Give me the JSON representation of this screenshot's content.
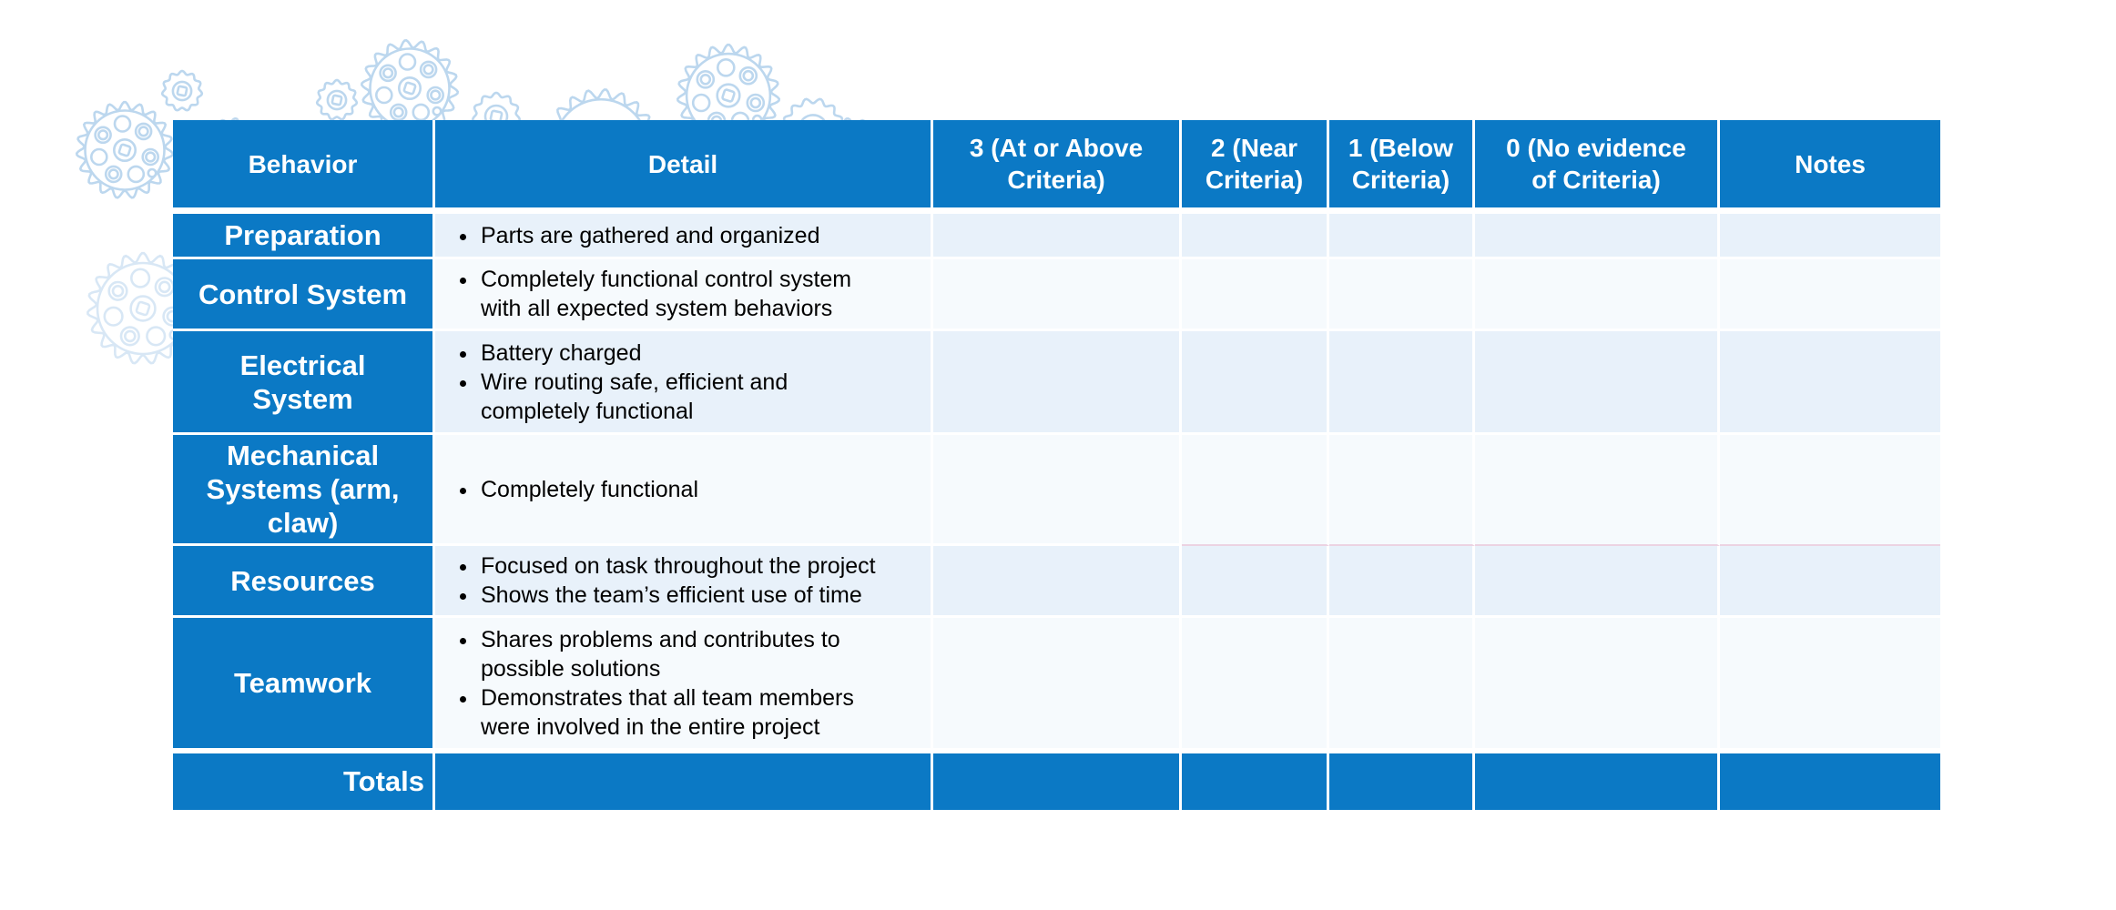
{
  "table": {
    "columns": [
      "Behavior",
      "Detail",
      "3 (At or Above Criteria)",
      "2 (Near Criteria)",
      "1 (Below Criteria)",
      "0 (No evidence of Criteria)",
      "Notes"
    ],
    "rows": [
      {
        "behavior": "Preparation",
        "details": [
          "Parts are gathered and organized"
        ]
      },
      {
        "behavior": "Control System",
        "details": [
          "Completely functional control system with all expected system behaviors"
        ]
      },
      {
        "behavior": "Electrical System",
        "details": [
          "Battery charged",
          "Wire routing safe, efficient and completely functional"
        ]
      },
      {
        "behavior": "Mechanical Systems (arm, claw)",
        "details": [
          "Completely functional"
        ]
      },
      {
        "behavior": "Resources",
        "details": [
          "Focused on task throughout the project",
          "Shows the team’s efficient use of time"
        ]
      },
      {
        "behavior": "Teamwork",
        "details": [
          "Shares problems and contributes to possible solutions",
          "Demonstrates that all team members were involved in the entire project"
        ]
      }
    ],
    "totals_label": "Totals"
  },
  "colors": {
    "header_blue": "#0b79c5",
    "row_band_blue": "#e8f1fa",
    "row_band_white": "#f6fafd",
    "divider_pink": "#ecd3e2",
    "gear_outline_blue": "#b9d5ee",
    "header_text": "#ffffff",
    "detail_text": "#000000"
  },
  "decor": {
    "background_icon": "gear-icon"
  }
}
